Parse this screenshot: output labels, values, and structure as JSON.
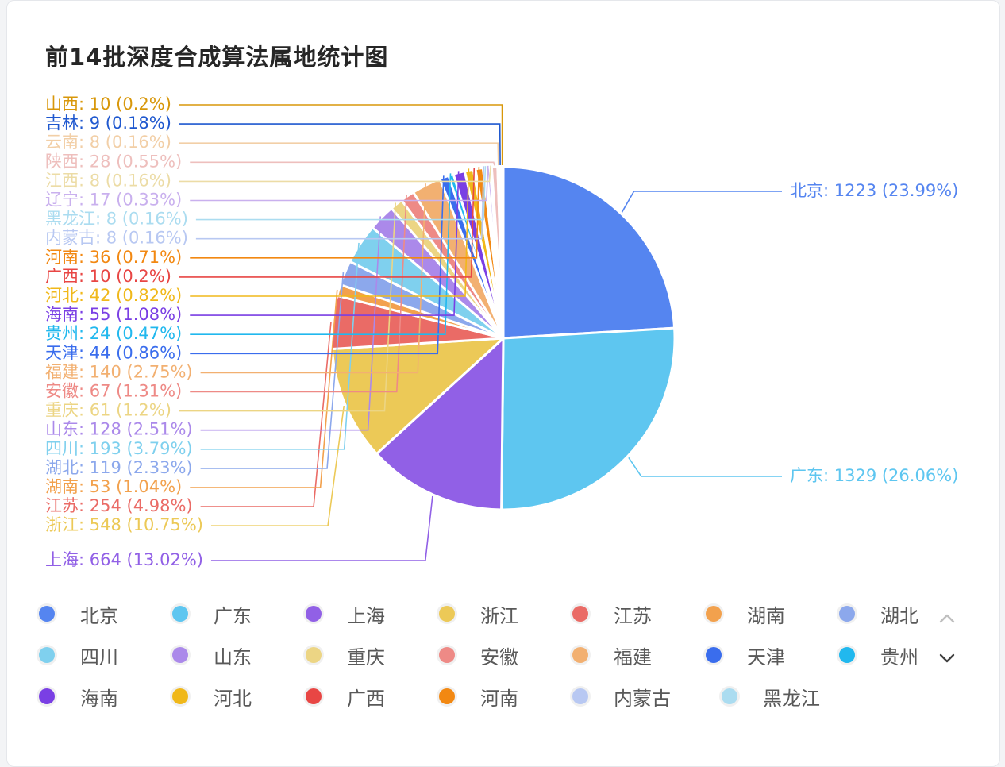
{
  "title": "前14批深度合成算法属地统计图",
  "colors": {
    "北京": "#5585f0",
    "广东": "#5ec6f0",
    "上海": "#9160e6",
    "浙江": "#ecc957",
    "江苏": "#ea6b66",
    "湖南": "#f2a14d",
    "湖北": "#8ca8ec",
    "四川": "#7fd0ee",
    "山东": "#ab89ea",
    "重庆": "#ecd584",
    "安徽": "#ee8a86",
    "福建": "#f2b071",
    "天津": "#3a6ded",
    "贵州": "#21b8ee",
    "海南": "#7a3fe4",
    "河北": "#f0b81a",
    "广西": "#e84644",
    "河南": "#f28812",
    "内蒙古": "#b8c8f2",
    "黑龙江": "#abdcf0",
    "辽宁": "#c9b0ee",
    "江西": "#ecdca6",
    "陕西": "#eebfbd",
    "云南": "#f2cfa7",
    "吉林": "#1f58cf",
    "山西": "#d8970a"
  },
  "chart_data": {
    "type": "pie",
    "title": "前14批深度合成算法属地统计图",
    "slices": [
      {
        "name": "北京",
        "value": 1223,
        "percent": "23.99%"
      },
      {
        "name": "广东",
        "value": 1329,
        "percent": "26.06%"
      },
      {
        "name": "上海",
        "value": 664,
        "percent": "13.02%"
      },
      {
        "name": "浙江",
        "value": 548,
        "percent": "10.75%"
      },
      {
        "name": "江苏",
        "value": 254,
        "percent": "4.98%"
      },
      {
        "name": "湖南",
        "value": 53,
        "percent": "1.04%"
      },
      {
        "name": "湖北",
        "value": 119,
        "percent": "2.33%"
      },
      {
        "name": "四川",
        "value": 193,
        "percent": "3.79%"
      },
      {
        "name": "山东",
        "value": 128,
        "percent": "2.51%"
      },
      {
        "name": "重庆",
        "value": 61,
        "percent": "1.2%"
      },
      {
        "name": "安徽",
        "value": 67,
        "percent": "1.31%"
      },
      {
        "name": "福建",
        "value": 140,
        "percent": "2.75%"
      },
      {
        "name": "天津",
        "value": 44,
        "percent": "0.86%"
      },
      {
        "name": "贵州",
        "value": 24,
        "percent": "0.47%"
      },
      {
        "name": "海南",
        "value": 55,
        "percent": "1.08%"
      },
      {
        "name": "河北",
        "value": 42,
        "percent": "0.82%"
      },
      {
        "name": "广西",
        "value": 10,
        "percent": "0.2%"
      },
      {
        "name": "河南",
        "value": 36,
        "percent": "0.71%"
      },
      {
        "name": "内蒙古",
        "value": 8,
        "percent": "0.16%"
      },
      {
        "name": "黑龙江",
        "value": 8,
        "percent": "0.16%"
      },
      {
        "name": "辽宁",
        "value": 17,
        "percent": "0.33%"
      },
      {
        "name": "江西",
        "value": 8,
        "percent": "0.16%"
      },
      {
        "name": "陕西",
        "value": 28,
        "percent": "0.55%"
      },
      {
        "name": "云南",
        "value": 8,
        "percent": "0.16%"
      },
      {
        "name": "吉林",
        "value": 9,
        "percent": "0.18%"
      },
      {
        "name": "山西",
        "value": 10,
        "percent": "0.2%"
      }
    ]
  },
  "legend": {
    "items": [
      "北京",
      "广东",
      "上海",
      "浙江",
      "江苏",
      "湖南",
      "湖北",
      "四川",
      "山东",
      "重庆",
      "安徽",
      "福建",
      "天津",
      "贵州",
      "海南",
      "河北",
      "广西",
      "河南",
      "内蒙古",
      "黑龙江"
    ],
    "pager_up_icon": "chevron-up-icon",
    "pager_down_icon": "chevron-down-icon"
  }
}
